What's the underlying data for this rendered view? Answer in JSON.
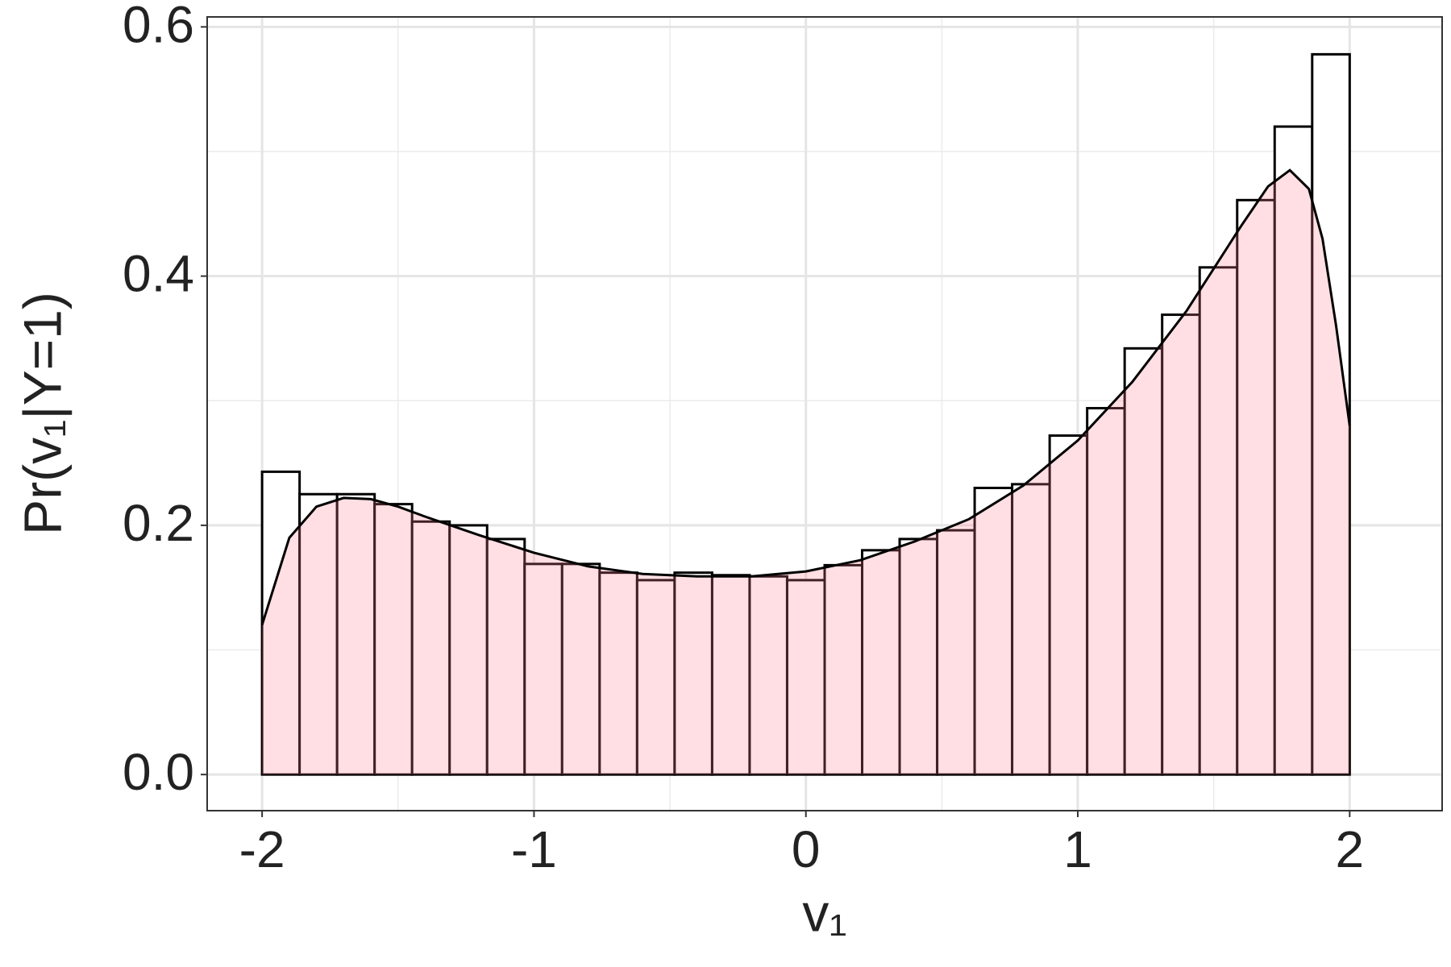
{
  "chart_data": {
    "type": "histogram",
    "x_label": "v₁",
    "y_label": "Pr(v₁|Y=1)",
    "bins": [
      -2,
      -1.8621,
      -1.7241,
      -1.5862,
      -1.4483,
      -1.3103,
      -1.1724,
      -1.0345,
      -0.8966,
      -0.7586,
      -0.6207,
      -0.4828,
      -0.3448,
      -0.2069,
      -0.069,
      0.069,
      0.2069,
      0.3448,
      0.4828,
      0.6207,
      0.7586,
      0.8966,
      1.0345,
      1.1724,
      1.3103,
      1.4483,
      1.5862,
      1.7241,
      1.8621,
      2,
      2.1379
    ],
    "values": [
      0.243,
      0.225,
      0.225,
      0.217,
      0.203,
      0.2,
      0.189,
      0.169,
      0.169,
      0.162,
      0.156,
      0.162,
      0.16,
      0.159,
      0.156,
      0.168,
      0.18,
      0.189,
      0.196,
      0.23,
      0.233,
      0.272,
      0.294,
      0.342,
      0.369,
      0.407,
      0.461,
      0.52,
      0.578,
      0
    ],
    "bar_fill": "#ffffff",
    "bar_stroke": "#000000",
    "density_x": [
      -2,
      -1.9,
      -1.8,
      -1.7,
      -1.6,
      -1.5,
      -1.4,
      -1.2,
      -1,
      -0.8,
      -0.6,
      -0.4,
      -0.2,
      0,
      0.2,
      0.4,
      0.6,
      0.8,
      1,
      1.2,
      1.4,
      1.6,
      1.7,
      1.78,
      1.85,
      1.9,
      1.95,
      2
    ],
    "density_y": [
      0.12,
      0.19,
      0.215,
      0.222,
      0.221,
      0.215,
      0.207,
      0.192,
      0.178,
      0.167,
      0.161,
      0.159,
      0.159,
      0.163,
      0.172,
      0.187,
      0.205,
      0.232,
      0.268,
      0.315,
      0.372,
      0.44,
      0.472,
      0.485,
      0.47,
      0.43,
      0.36,
      0.28
    ],
    "density_color": "#ff7f8e",
    "xlim": [
      -2.202,
      2.34
    ],
    "ylim": [
      -0.029,
      0.608
    ],
    "xticks": [
      -2,
      -1,
      0,
      1,
      2
    ],
    "yticks": [
      {
        "value": 0,
        "label": "0.0"
      },
      0.2,
      0.4,
      0.6
    ],
    "x_minor_grid": [
      -1.5,
      -0.5,
      0.5,
      1.5
    ],
    "y_minor_grid": [
      0.1,
      0.3,
      0.5
    ],
    "grid": true
  }
}
